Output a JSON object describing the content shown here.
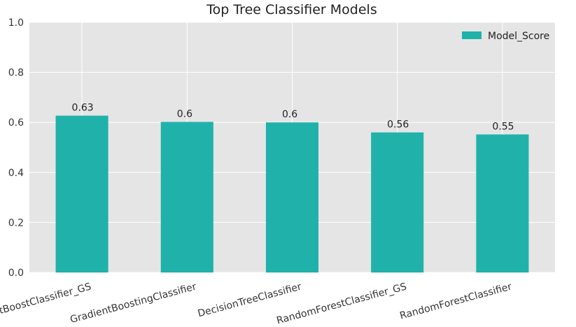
{
  "chart_data": {
    "type": "bar",
    "title": "Top Tree Classifier Models",
    "categories": [
      "GradientBoostClassifier_GS",
      "GradientBoostingClassifier",
      "DecisionTreeClassifier",
      "RandomForestClassifier_GS",
      "RandomForestClassifier"
    ],
    "series": [
      {
        "name": "Model_Score",
        "values": [
          0.627,
          0.602,
          0.6,
          0.56,
          0.552
        ],
        "color": "#20b2aa"
      }
    ],
    "data_labels": [
      "0.63",
      "0.6",
      "0.6",
      "0.56",
      "0.55"
    ],
    "ylim": [
      0,
      1.0
    ],
    "yticks": [
      "0.0",
      "0.2",
      "0.4",
      "0.6",
      "0.8",
      "1.0"
    ],
    "xlabel": "",
    "ylabel": "",
    "grid": true,
    "legend_position": "top-right",
    "plot_background": "#e5e5e5",
    "grid_color": "#ffffff"
  }
}
